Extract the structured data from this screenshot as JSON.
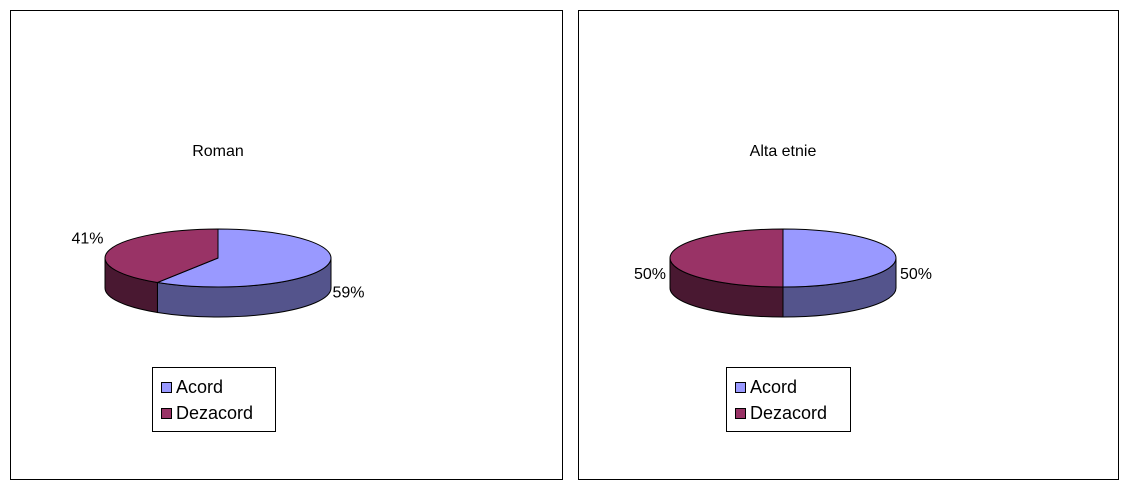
{
  "legend": [
    {
      "label": "Acord",
      "color": "#9999ff"
    },
    {
      "label": "Dezacord",
      "color": "#993366"
    }
  ],
  "chart_data": [
    {
      "type": "pie",
      "title": "Roman",
      "categories": [
        "Acord",
        "Dezacord"
      ],
      "values": [
        59,
        41
      ],
      "labels": [
        "59%",
        "41%"
      ],
      "colors": [
        "#9999ff",
        "#993366"
      ],
      "style": "3d",
      "legend_position": "bottom"
    },
    {
      "type": "pie",
      "title": "Alta etnie",
      "categories": [
        "Acord",
        "Dezacord"
      ],
      "values": [
        50,
        50
      ],
      "labels": [
        "50%",
        "50%"
      ],
      "colors": [
        "#9999ff",
        "#993366"
      ],
      "style": "3d",
      "legend_position": "bottom"
    }
  ]
}
